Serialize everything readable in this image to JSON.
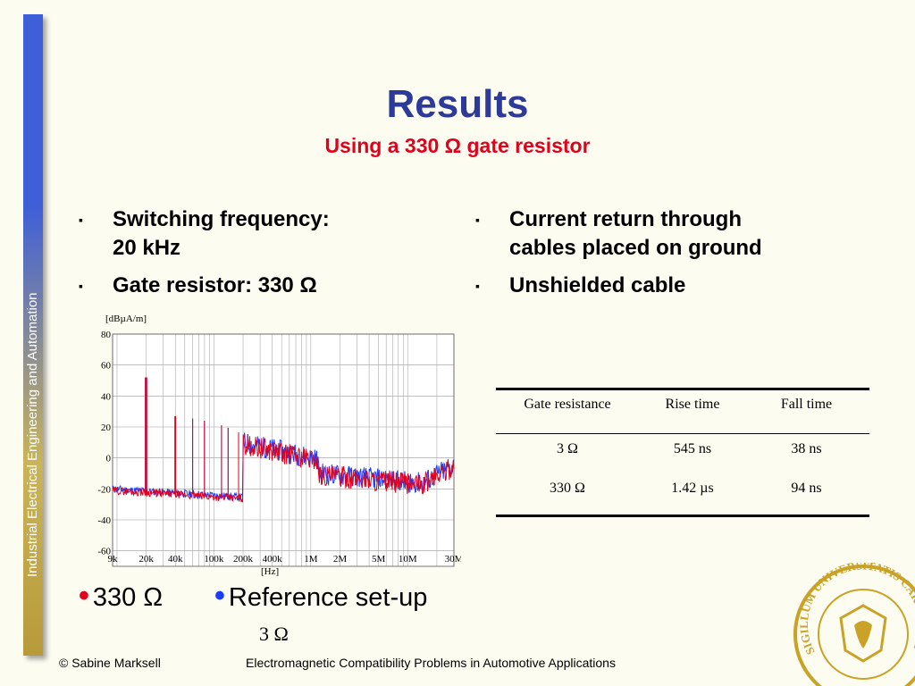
{
  "sidebar": {
    "text": "Industrial Electrical Engineering and Automation",
    "colors": {
      "top": "#3f5fd8",
      "bottom": "#b89a3a"
    }
  },
  "title": "Results",
  "subtitle": "Using a 330 Ω gate resistor",
  "bullets_left": [
    {
      "line1": "Switching frequency:",
      "line2": "20 kHz"
    },
    {
      "line1": "Gate resistor: 330 Ω",
      "line2": ""
    }
  ],
  "bullets_right": [
    {
      "line1": "Current return through",
      "line2": "cables placed on ground"
    },
    {
      "line1": "Unshielded cable",
      "line2": ""
    }
  ],
  "bullet_marker": "▪",
  "chart_data": {
    "type": "line",
    "ylabel": "[dBµA/m]",
    "xlabel": "[Hz]",
    "ylim": [
      -70,
      80
    ],
    "y_ticks": [
      80,
      60,
      40,
      20,
      0,
      -20,
      -40,
      -60
    ],
    "x_scale": "log",
    "x_ticks": [
      "9k",
      "20k",
      "40k",
      "100k",
      "200k",
      "400k",
      "1M",
      "2M",
      "5M",
      "10M",
      "30M"
    ],
    "grid": true,
    "series": [
      {
        "name": "330 Ω",
        "color": "#e3001b"
      },
      {
        "name": "Reference set-up 3 Ω",
        "color": "#1a3cff"
      }
    ]
  },
  "table": {
    "headers": [
      "Gate resistance",
      "Rise time",
      "Fall time"
    ],
    "rows": [
      [
        "3 Ω",
        "545 ns",
        "38 ns"
      ],
      [
        "330 Ω",
        "1.42 µs",
        "94 ns"
      ]
    ]
  },
  "legend": {
    "item1": "330 Ω",
    "item2": "Reference set-up",
    "item2_sub": "3 Ω",
    "dot": "•",
    "color1": "#e3001b",
    "color2": "#1a3cff"
  },
  "footer": {
    "left": "© Sabine Marksell",
    "center": "Electromagnetic Compatibility Problems in Automotive Applications"
  },
  "seal": {
    "text": "SIGILLUM UNIVERSITATIS CAROLINAE · AD UTRUMQUE",
    "color": "#c9a227"
  }
}
